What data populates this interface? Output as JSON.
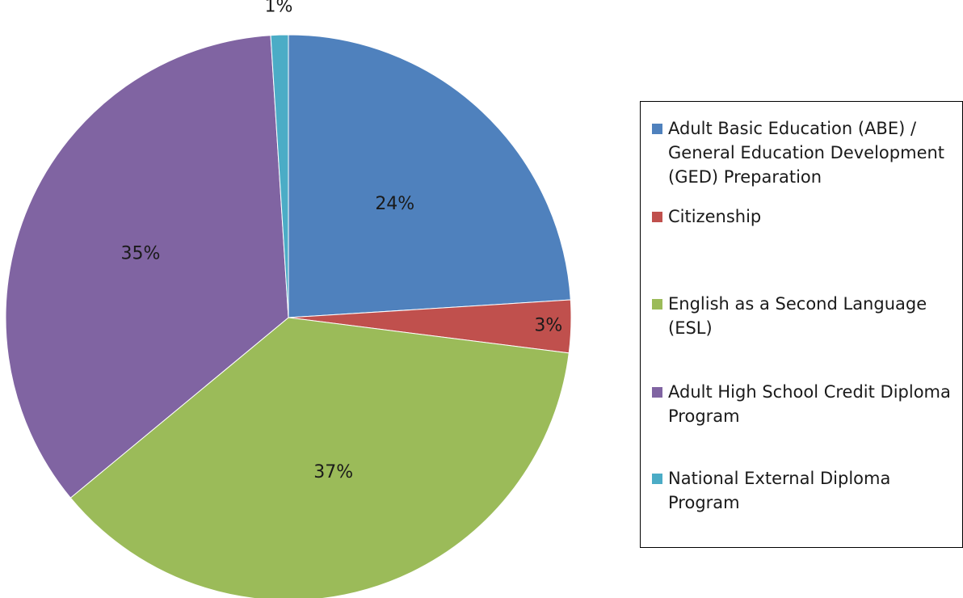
{
  "chart_data": {
    "type": "pie",
    "title": "",
    "slices": [
      {
        "label": "Adult Basic Education (ABE) / General Education Development (GED) Preparation",
        "value": 24,
        "display": "24%",
        "color": "#4F81BD"
      },
      {
        "label": "Citizenship",
        "value": 3,
        "display": "3%",
        "color": "#C0504D"
      },
      {
        "label": "English as a Second Language (ESL)",
        "value": 37,
        "display": "37%",
        "color": "#9BBB59"
      },
      {
        "label": "Adult High School Credit Diploma Program",
        "value": 35,
        "display": "35%",
        "color": "#8064A2"
      },
      {
        "label": "National External Diploma Program",
        "value": 1,
        "display": "1%",
        "color": "#4BACC6"
      }
    ],
    "legend": {
      "position": "right",
      "items": [
        "Adult Basic Education (ABE) / General Education Development (GED) Preparation",
        "Citizenship",
        "English as a Second Language (ESL)",
        "Adult High School Credit Diploma Program",
        "National External Diploma Program"
      ]
    }
  }
}
